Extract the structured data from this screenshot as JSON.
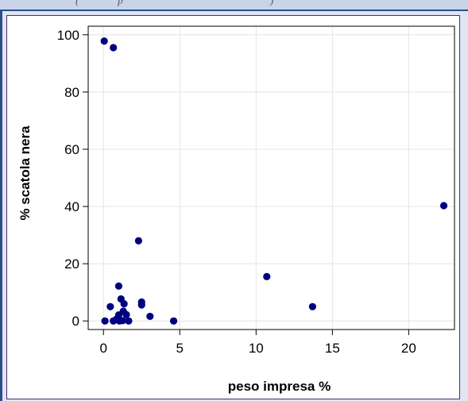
{
  "chart_data": {
    "type": "scatter",
    "title": "",
    "xlabel": "peso impresa %",
    "ylabel": "% scatola nera",
    "xlim": [
      -1,
      23
    ],
    "ylim": [
      -3,
      103
    ],
    "xticks": [
      0,
      5,
      10,
      15,
      20
    ],
    "yticks": [
      0,
      20,
      40,
      60,
      80,
      100
    ],
    "grid": true,
    "marker_color": "#000080",
    "series": [
      {
        "points": [
          {
            "x": 0.05,
            "y": 97.8
          },
          {
            "x": 0.65,
            "y": 95.5
          },
          {
            "x": 22.3,
            "y": 40.3
          },
          {
            "x": 2.3,
            "y": 28.0
          },
          {
            "x": 10.7,
            "y": 15.5
          },
          {
            "x": 1.0,
            "y": 12.2
          },
          {
            "x": 1.15,
            "y": 7.7
          },
          {
            "x": 2.5,
            "y": 6.6
          },
          {
            "x": 1.35,
            "y": 6.0
          },
          {
            "x": 2.5,
            "y": 5.6
          },
          {
            "x": 13.7,
            "y": 5.0
          },
          {
            "x": 0.45,
            "y": 5.0
          },
          {
            "x": 1.3,
            "y": 3.4
          },
          {
            "x": 1.0,
            "y": 2.1
          },
          {
            "x": 1.5,
            "y": 2.2
          },
          {
            "x": 3.05,
            "y": 1.6
          },
          {
            "x": 0.85,
            "y": 0.6
          },
          {
            "x": 0.1,
            "y": 0.0
          },
          {
            "x": 0.65,
            "y": 0.0
          },
          {
            "x": 1.05,
            "y": 0.0
          },
          {
            "x": 1.25,
            "y": 0.1
          },
          {
            "x": 1.65,
            "y": 0.0
          },
          {
            "x": 4.6,
            "y": 0.0
          }
        ]
      }
    ]
  }
}
